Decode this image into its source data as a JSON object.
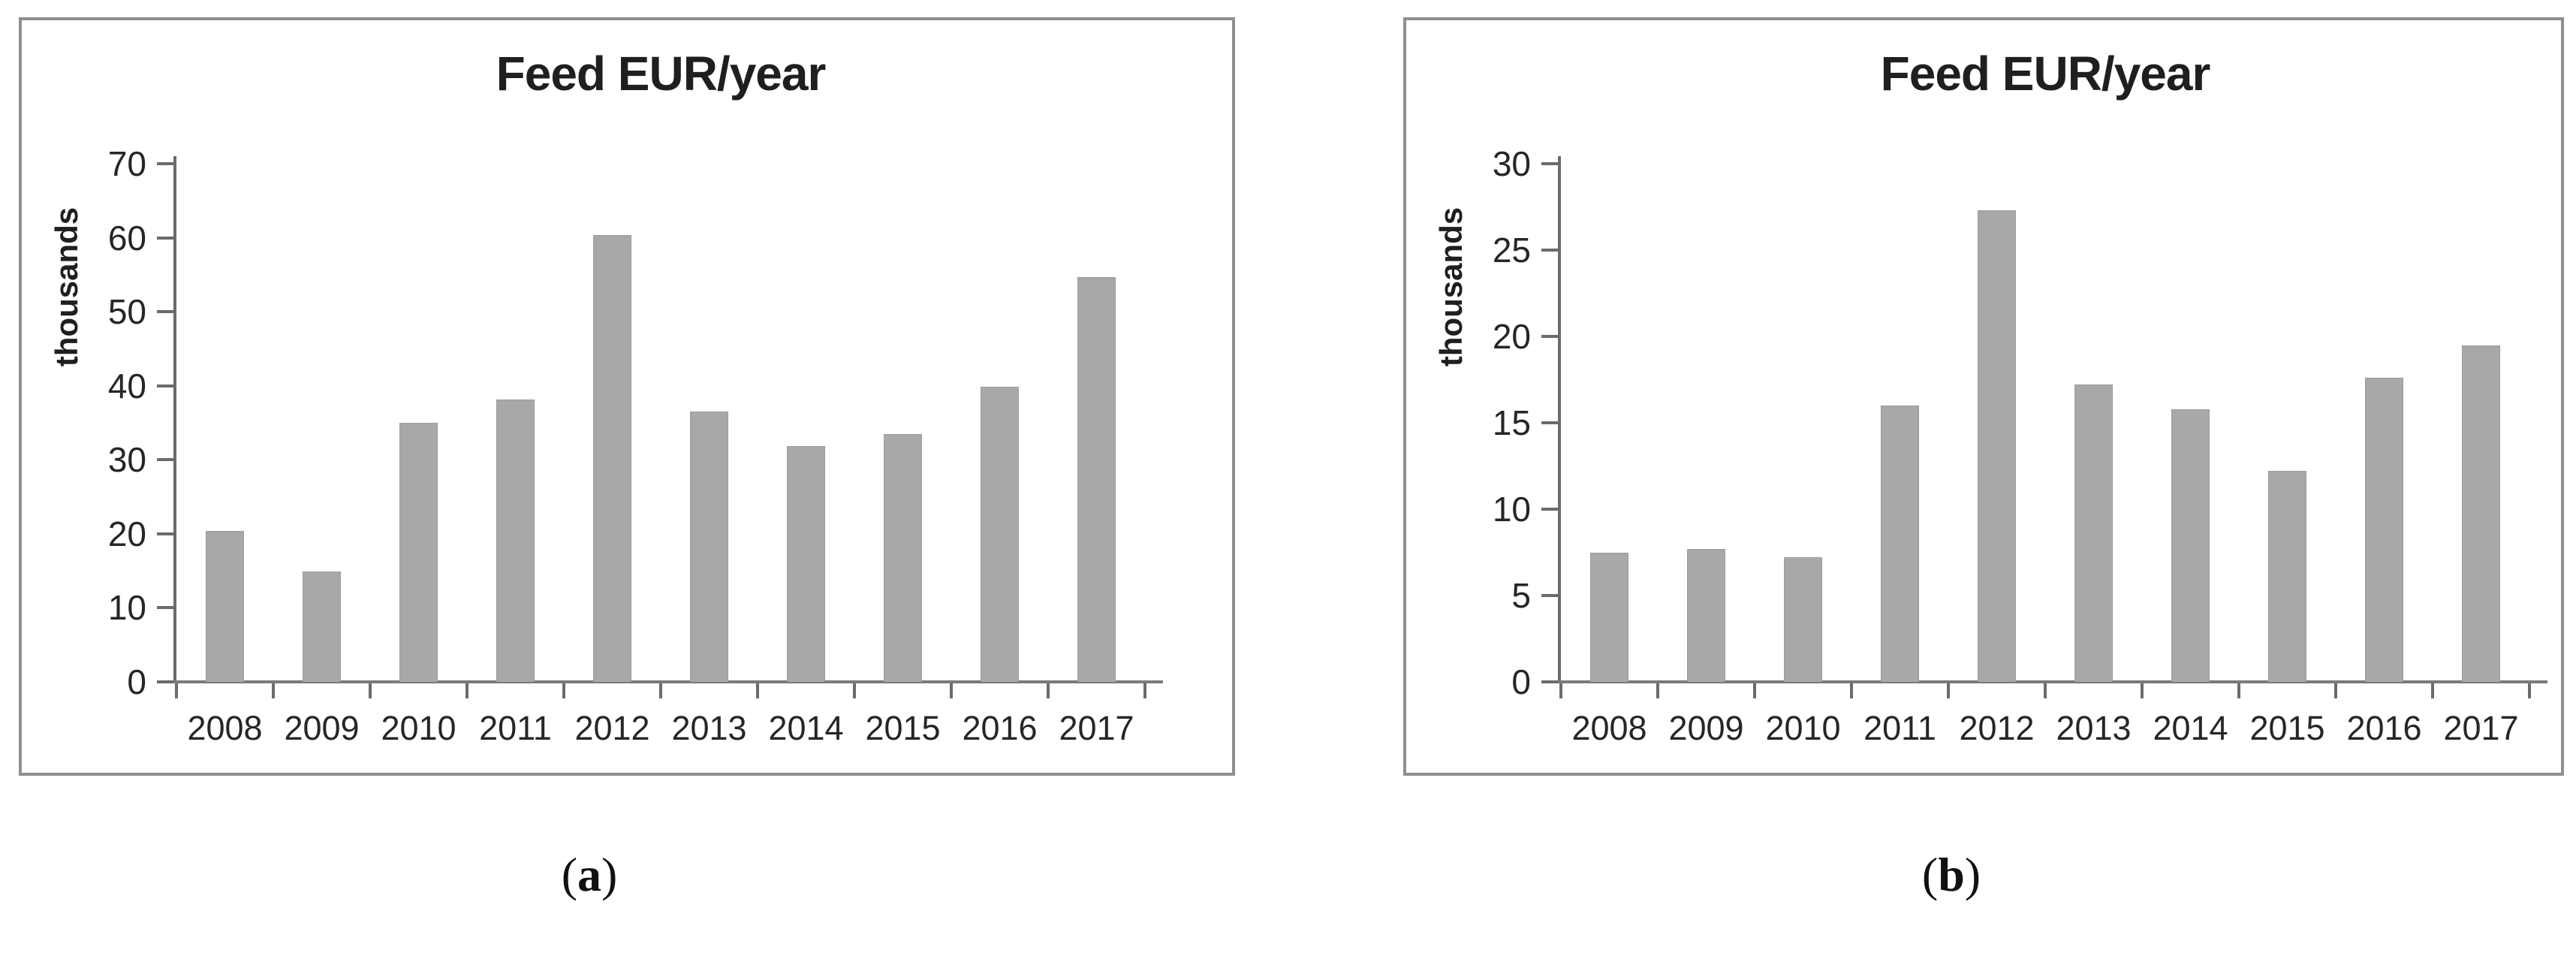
{
  "figure": {
    "background_color": "#ffffff",
    "panel_border_color": "#8f8f8f",
    "bar_fill_color": "#a8a8a8",
    "bar_edge_color": "#9b9b9b",
    "axis_color": "#6b6b6b",
    "text_color": "#262626"
  },
  "chart_data": [
    {
      "type": "bar",
      "title": "Feed EUR/year",
      "ylabel": "thousands",
      "xlabel": "",
      "categories": [
        "2008",
        "2009",
        "2010",
        "2011",
        "2012",
        "2013",
        "2014",
        "2015",
        "2016",
        "2017"
      ],
      "values": [
        20.4,
        14.9,
        35.0,
        38.1,
        60.4,
        36.5,
        31.9,
        33.5,
        39.9,
        54.7
      ],
      "ylim": [
        0,
        70
      ],
      "ytick_step": 10,
      "grid": "off",
      "legend": "none",
      "caption": {
        "open": "(",
        "letter": "a",
        "close": ")"
      }
    },
    {
      "type": "bar",
      "title": "Feed EUR/year",
      "ylabel": "thousands",
      "xlabel": "",
      "categories": [
        "2008",
        "2009",
        "2010",
        "2011",
        "2012",
        "2013",
        "2014",
        "2015",
        "2016",
        "2017"
      ],
      "values": [
        7.5,
        7.7,
        7.2,
        16.0,
        27.3,
        17.2,
        15.8,
        12.2,
        17.6,
        19.5
      ],
      "ylim": [
        0,
        30
      ],
      "ytick_step": 5,
      "grid": "off",
      "legend": "none",
      "caption": {
        "open": "(",
        "letter": "b",
        "close": ")"
      }
    }
  ]
}
